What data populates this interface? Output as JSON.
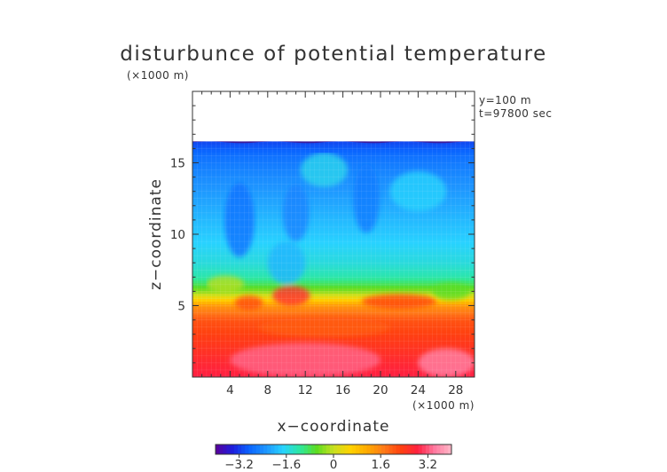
{
  "chart_data": {
    "type": "heatmap",
    "title": "disturbunce of potential temperature",
    "xlabel": "x−coordinate",
    "ylabel": "z−coordinate",
    "x_unit": "(×1000 m)",
    "y_unit": "(×1000 m)",
    "annotations": [
      "y=100 m",
      "t=97800 sec"
    ],
    "xlim": [
      0,
      30
    ],
    "ylim": [
      0,
      20
    ],
    "x_ticks": [
      4,
      8,
      12,
      16,
      20,
      24,
      28
    ],
    "y_ticks": [
      5,
      10,
      15
    ],
    "x_tick_labels": [
      "4",
      "8",
      "12",
      "16",
      "20",
      "24",
      "28"
    ],
    "y_tick_labels": [
      "5",
      "10",
      "15"
    ],
    "domain_top_km": 16.5,
    "colorbar": {
      "range": [
        -4.0,
        4.0
      ],
      "ticks": [
        -3.2,
        -1.6,
        0,
        1.6,
        3.2
      ],
      "tick_labels": [
        "−3.2",
        "−1.6",
        "0",
        "1.6",
        "3.2"
      ],
      "colors": [
        "#5a009a",
        "#1e1edc",
        "#0a64ff",
        "#1e96ff",
        "#28d2ff",
        "#2ce8a0",
        "#5cdc20",
        "#c8e020",
        "#ffd200",
        "#ffaa00",
        "#ff7a18",
        "#ff4010",
        "#ff2040",
        "#ff7aa0",
        "#ffb8c8"
      ]
    },
    "field_profile": {
      "z": [
        0,
        2,
        4,
        5,
        5.5,
        6.0,
        6.5,
        7.0,
        8,
        10,
        12,
        14,
        15.5,
        16.5
      ],
      "value": [
        2.9,
        2.5,
        2.1,
        1.4,
        0.5,
        -0.3,
        -0.8,
        -1.2,
        -1.5,
        -1.8,
        -2.1,
        -2.4,
        -2.7,
        -3.1
      ]
    }
  }
}
